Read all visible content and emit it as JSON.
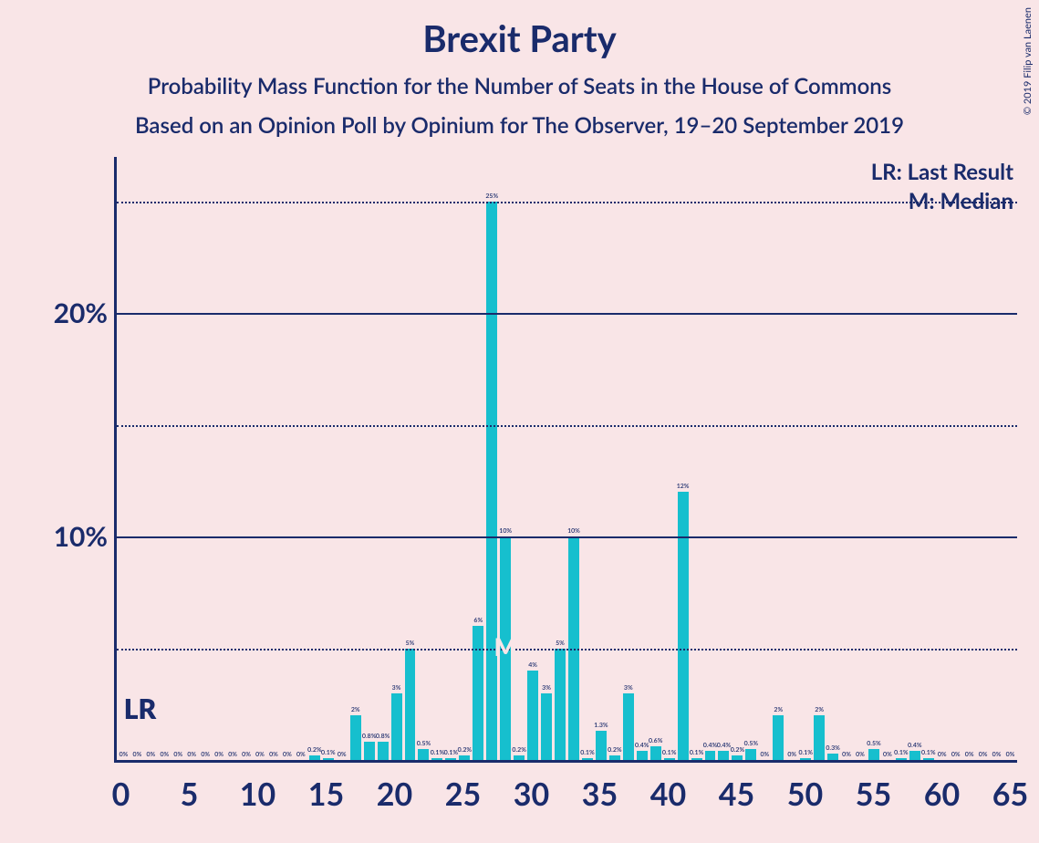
{
  "title": "Brexit Party",
  "subtitle": "Probability Mass Function for the Number of Seats in the House of Commons",
  "subtitle2": "Based on an Opinion Poll by Opinium for The Observer, 19–20 September 2019",
  "copyright": "© 2019 Filip van Laenen",
  "legend": {
    "lr": "LR: Last Result",
    "m": "M: Median"
  },
  "chart": {
    "type": "bar",
    "bar_color": "#16bfce",
    "axis_color": "#1a2b6b",
    "background_color": "#f9e5e7",
    "grid_color": "#1a2b6b",
    "y": {
      "min": 0,
      "max": 27,
      "ticks": [
        {
          "v": 5,
          "label": "",
          "style": "dotted"
        },
        {
          "v": 10,
          "label": "10%",
          "style": "solid"
        },
        {
          "v": 15,
          "label": "",
          "style": "dotted"
        },
        {
          "v": 20,
          "label": "20%",
          "style": "solid"
        },
        {
          "v": 25,
          "label": "",
          "style": "dotted"
        }
      ]
    },
    "x": {
      "min": 0,
      "max": 65,
      "ticks": [
        0,
        5,
        10,
        15,
        20,
        25,
        30,
        35,
        40,
        45,
        50,
        55,
        60,
        65
      ]
    },
    "markers": {
      "lr": {
        "x": 0,
        "text": "LR"
      },
      "m": {
        "x": 28,
        "text": "M"
      }
    },
    "bars": [
      {
        "x": 0,
        "v": 0,
        "label": "0%"
      },
      {
        "x": 1,
        "v": 0,
        "label": "0%"
      },
      {
        "x": 2,
        "v": 0,
        "label": "0%"
      },
      {
        "x": 3,
        "v": 0,
        "label": "0%"
      },
      {
        "x": 4,
        "v": 0,
        "label": "0%"
      },
      {
        "x": 5,
        "v": 0,
        "label": "0%"
      },
      {
        "x": 6,
        "v": 0,
        "label": "0%"
      },
      {
        "x": 7,
        "v": 0,
        "label": "0%"
      },
      {
        "x": 8,
        "v": 0,
        "label": "0%"
      },
      {
        "x": 9,
        "v": 0,
        "label": "0%"
      },
      {
        "x": 10,
        "v": 0,
        "label": "0%"
      },
      {
        "x": 11,
        "v": 0,
        "label": "0%"
      },
      {
        "x": 12,
        "v": 0,
        "label": "0%"
      },
      {
        "x": 13,
        "v": 0,
        "label": "0%"
      },
      {
        "x": 14,
        "v": 0.2,
        "label": "0.2%"
      },
      {
        "x": 15,
        "v": 0.1,
        "label": "0.1%"
      },
      {
        "x": 16,
        "v": 0,
        "label": "0%"
      },
      {
        "x": 17,
        "v": 2,
        "label": "2%"
      },
      {
        "x": 18,
        "v": 0.8,
        "label": "0.8%"
      },
      {
        "x": 19,
        "v": 0.8,
        "label": "0.8%"
      },
      {
        "x": 20,
        "v": 3,
        "label": "3%"
      },
      {
        "x": 21,
        "v": 5,
        "label": "5%"
      },
      {
        "x": 22,
        "v": 0.5,
        "label": "0.5%"
      },
      {
        "x": 23,
        "v": 0.1,
        "label": "0.1%"
      },
      {
        "x": 24,
        "v": 0.1,
        "label": "0.1%"
      },
      {
        "x": 25,
        "v": 0.2,
        "label": "0.2%"
      },
      {
        "x": 26,
        "v": 6,
        "label": "6%"
      },
      {
        "x": 27,
        "v": 25,
        "label": "25%"
      },
      {
        "x": 28,
        "v": 10,
        "label": "10%"
      },
      {
        "x": 29,
        "v": 0.2,
        "label": "0.2%"
      },
      {
        "x": 30,
        "v": 4,
        "label": "4%"
      },
      {
        "x": 31,
        "v": 3,
        "label": "3%"
      },
      {
        "x": 32,
        "v": 5,
        "label": "5%"
      },
      {
        "x": 33,
        "v": 10,
        "label": "10%"
      },
      {
        "x": 34,
        "v": 0.1,
        "label": "0.1%"
      },
      {
        "x": 35,
        "v": 1.3,
        "label": "1.3%"
      },
      {
        "x": 36,
        "v": 0.2,
        "label": "0.2%"
      },
      {
        "x": 37,
        "v": 3,
        "label": "3%"
      },
      {
        "x": 38,
        "v": 0.4,
        "label": "0.4%"
      },
      {
        "x": 39,
        "v": 0.6,
        "label": "0.6%"
      },
      {
        "x": 40,
        "v": 0.1,
        "label": "0.1%"
      },
      {
        "x": 41,
        "v": 12,
        "label": "12%"
      },
      {
        "x": 42,
        "v": 0.1,
        "label": "0.1%"
      },
      {
        "x": 43,
        "v": 0.4,
        "label": "0.4%"
      },
      {
        "x": 44,
        "v": 0.4,
        "label": "0.4%"
      },
      {
        "x": 45,
        "v": 0.2,
        "label": "0.2%"
      },
      {
        "x": 46,
        "v": 0.5,
        "label": "0.5%"
      },
      {
        "x": 47,
        "v": 0,
        "label": "0%"
      },
      {
        "x": 48,
        "v": 2,
        "label": "2%"
      },
      {
        "x": 49,
        "v": 0,
        "label": "0%"
      },
      {
        "x": 50,
        "v": 0.1,
        "label": "0.1%"
      },
      {
        "x": 51,
        "v": 2,
        "label": "2%"
      },
      {
        "x": 52,
        "v": 0.3,
        "label": "0.3%"
      },
      {
        "x": 53,
        "v": 0,
        "label": "0%"
      },
      {
        "x": 54,
        "v": 0,
        "label": "0%"
      },
      {
        "x": 55,
        "v": 0.5,
        "label": "0.5%"
      },
      {
        "x": 56,
        "v": 0,
        "label": "0%"
      },
      {
        "x": 57,
        "v": 0.1,
        "label": "0.1%"
      },
      {
        "x": 58,
        "v": 0.4,
        "label": "0.4%"
      },
      {
        "x": 59,
        "v": 0.1,
        "label": "0.1%"
      },
      {
        "x": 60,
        "v": 0,
        "label": "0%"
      },
      {
        "x": 61,
        "v": 0,
        "label": "0%"
      },
      {
        "x": 62,
        "v": 0,
        "label": "0%"
      },
      {
        "x": 63,
        "v": 0,
        "label": "0%"
      },
      {
        "x": 64,
        "v": 0,
        "label": "0%"
      },
      {
        "x": 65,
        "v": 0,
        "label": "0%"
      }
    ]
  }
}
